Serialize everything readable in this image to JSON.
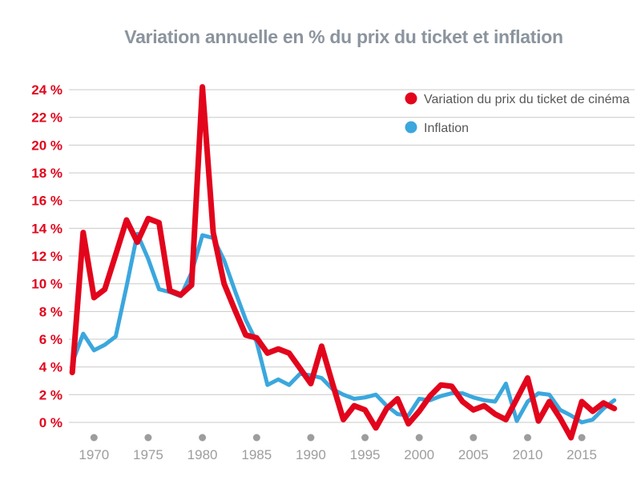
{
  "chart_data": {
    "type": "line",
    "title": "Variation annuelle en % du prix du ticket et inflation",
    "title_color": "#8b949e",
    "grid": {
      "horizontal": true,
      "color": "#c9c9c9"
    },
    "legend_position": "top-right",
    "legend_text_color": "#575756",
    "x": [
      1968,
      1969,
      1970,
      1971,
      1972,
      1973,
      1974,
      1975,
      1976,
      1977,
      1978,
      1979,
      1980,
      1981,
      1982,
      1983,
      1984,
      1985,
      1986,
      1987,
      1988,
      1989,
      1990,
      1991,
      1992,
      1993,
      1994,
      1995,
      1996,
      1997,
      1998,
      1999,
      2000,
      2001,
      2002,
      2003,
      2004,
      2005,
      2006,
      2007,
      2008,
      2009,
      2010,
      2011,
      2012,
      2013,
      2014,
      2015,
      2016,
      2017,
      2018
    ],
    "series": [
      {
        "name": "Variation du prix du ticket de cinéma",
        "color": "#e2051c",
        "values": [
          3.6,
          13.7,
          9.0,
          9.6,
          12.1,
          14.6,
          13.0,
          14.7,
          14.4,
          9.5,
          9.2,
          9.9,
          24.2,
          13.7,
          10.0,
          8.1,
          6.3,
          6.1,
          5.0,
          5.3,
          5.0,
          3.9,
          2.8,
          5.5,
          2.8,
          0.2,
          1.2,
          0.9,
          -0.4,
          1.0,
          1.7,
          -0.1,
          0.8,
          1.9,
          2.7,
          2.6,
          1.5,
          0.9,
          1.2,
          0.6,
          0.2,
          1.7,
          3.2,
          0.1,
          1.5,
          0.3,
          -1.1,
          1.5,
          0.8,
          1.4,
          1.0
        ]
      },
      {
        "name": "Inflation",
        "color": "#3ba7dd",
        "values": [
          4.3,
          6.4,
          5.2,
          5.6,
          6.2,
          9.8,
          13.6,
          11.8,
          9.6,
          9.4,
          9.1,
          10.8,
          13.5,
          13.3,
          11.7,
          9.5,
          7.4,
          5.8,
          2.7,
          3.1,
          2.7,
          3.5,
          3.4,
          3.2,
          2.4,
          2.0,
          1.7,
          1.8,
          2.0,
          1.2,
          0.6,
          0.5,
          1.7,
          1.6,
          1.9,
          2.1,
          2.1,
          1.8,
          1.6,
          1.5,
          2.8,
          0.1,
          1.5,
          2.1,
          2.0,
          0.9,
          0.5,
          0.0,
          0.2,
          1.0,
          1.6
        ]
      }
    ],
    "y_axis": {
      "label_color": "#e2051c",
      "range": [
        -1.5,
        25
      ],
      "ticks": [
        {
          "value": 0,
          "label": "0 %"
        },
        {
          "value": 2,
          "label": "2 %"
        },
        {
          "value": 4,
          "label": "4 %"
        },
        {
          "value": 6,
          "label": "6 %"
        },
        {
          "value": 8,
          "label": "8 %"
        },
        {
          "value": 10,
          "label": "10 %"
        },
        {
          "value": 12,
          "label": "12 %"
        },
        {
          "value": 14,
          "label": "14 %"
        },
        {
          "value": 16,
          "label": "16 %"
        },
        {
          "value": 18,
          "label": "18 %"
        },
        {
          "value": 20,
          "label": "20 %"
        },
        {
          "value": 22,
          "label": "22 %"
        },
        {
          "value": 24,
          "label": "24 %"
        }
      ]
    },
    "x_axis": {
      "label_color": "#9d9d9d",
      "ticks": [
        {
          "value": 1970,
          "label": "1970"
        },
        {
          "value": 1975,
          "label": "1975"
        },
        {
          "value": 1980,
          "label": "1980"
        },
        {
          "value": 1985,
          "label": "1985"
        },
        {
          "value": 1990,
          "label": "1990"
        },
        {
          "value": 1995,
          "label": "1995"
        },
        {
          "value": 2000,
          "label": "2000"
        },
        {
          "value": 2005,
          "label": "2005"
        },
        {
          "value": 2010,
          "label": "2010"
        },
        {
          "value": 2015,
          "label": "2015"
        }
      ]
    }
  }
}
